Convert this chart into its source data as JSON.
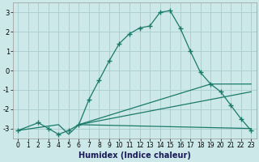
{
  "xlabel": "Humidex (Indice chaleur)",
  "bg_color": "#cce8e8",
  "grid_color": "#aacccc",
  "line_color": "#1a7a6a",
  "xlim": [
    -0.5,
    23.5
  ],
  "ylim": [
    -3.5,
    3.5
  ],
  "xticks": [
    0,
    1,
    2,
    3,
    4,
    5,
    6,
    7,
    8,
    9,
    10,
    11,
    12,
    13,
    14,
    15,
    16,
    17,
    18,
    19,
    20,
    21,
    22,
    23
  ],
  "yticks": [
    -3,
    -2,
    -1,
    0,
    1,
    2,
    3
  ],
  "main_x": [
    0,
    2,
    3,
    4,
    5,
    6,
    7,
    8,
    9,
    10,
    11,
    12,
    13,
    14,
    15,
    16,
    17,
    18,
    19,
    20,
    21,
    22,
    23
  ],
  "main_y": [
    -3.1,
    -2.7,
    -3.0,
    -3.3,
    -3.1,
    -2.8,
    -1.5,
    -0.5,
    0.5,
    1.4,
    1.9,
    2.2,
    2.3,
    3.0,
    3.1,
    2.2,
    1.0,
    -0.1,
    -0.7,
    -1.1,
    -1.8,
    -2.5,
    -3.1
  ],
  "line2_x": [
    6,
    23
  ],
  "line2_y": [
    -2.8,
    -3.0
  ],
  "line3_x": [
    6,
    19,
    23
  ],
  "line3_y": [
    -2.8,
    -0.7,
    -0.7
  ],
  "line4_x": [
    6,
    23
  ],
  "line4_y": [
    -2.8,
    -1.1
  ],
  "line5_x": [
    0,
    4,
    5,
    6
  ],
  "line5_y": [
    -3.1,
    -2.8,
    -3.3,
    -2.8
  ]
}
